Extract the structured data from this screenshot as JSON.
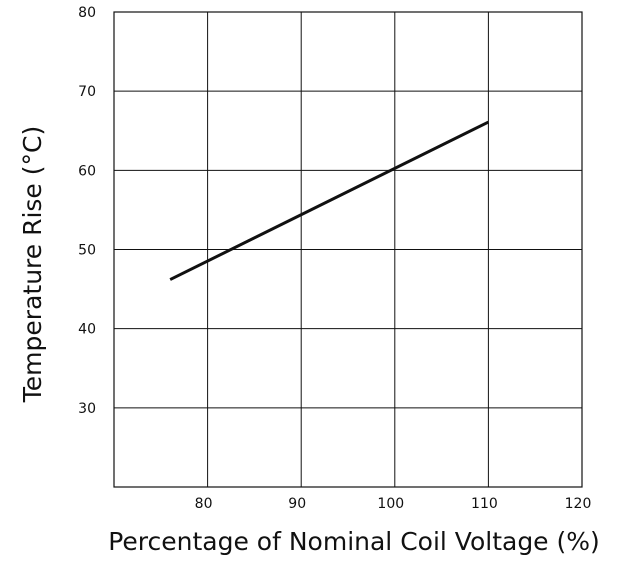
{
  "chart_data": {
    "type": "line",
    "title": "",
    "xlabel": "Percentage of Nominal Coil Voltage (%)",
    "ylabel": "Temperature Rise (°C)",
    "xlim": [
      70,
      120
    ],
    "ylim": [
      20,
      80
    ],
    "x_ticks": [
      80,
      90,
      100,
      110,
      120
    ],
    "y_ticks": [
      30,
      40,
      50,
      60,
      70,
      80
    ],
    "x_tick_labels": [
      "80",
      "90",
      "100",
      "110",
      "120"
    ],
    "y_tick_labels": [
      "30",
      "40",
      "50",
      "60",
      "70",
      "80"
    ],
    "grid": true,
    "legend": "none",
    "series": [
      {
        "x": [
          76,
          110
        ],
        "y": [
          46.2,
          66.1
        ],
        "color": "#111111"
      }
    ]
  }
}
